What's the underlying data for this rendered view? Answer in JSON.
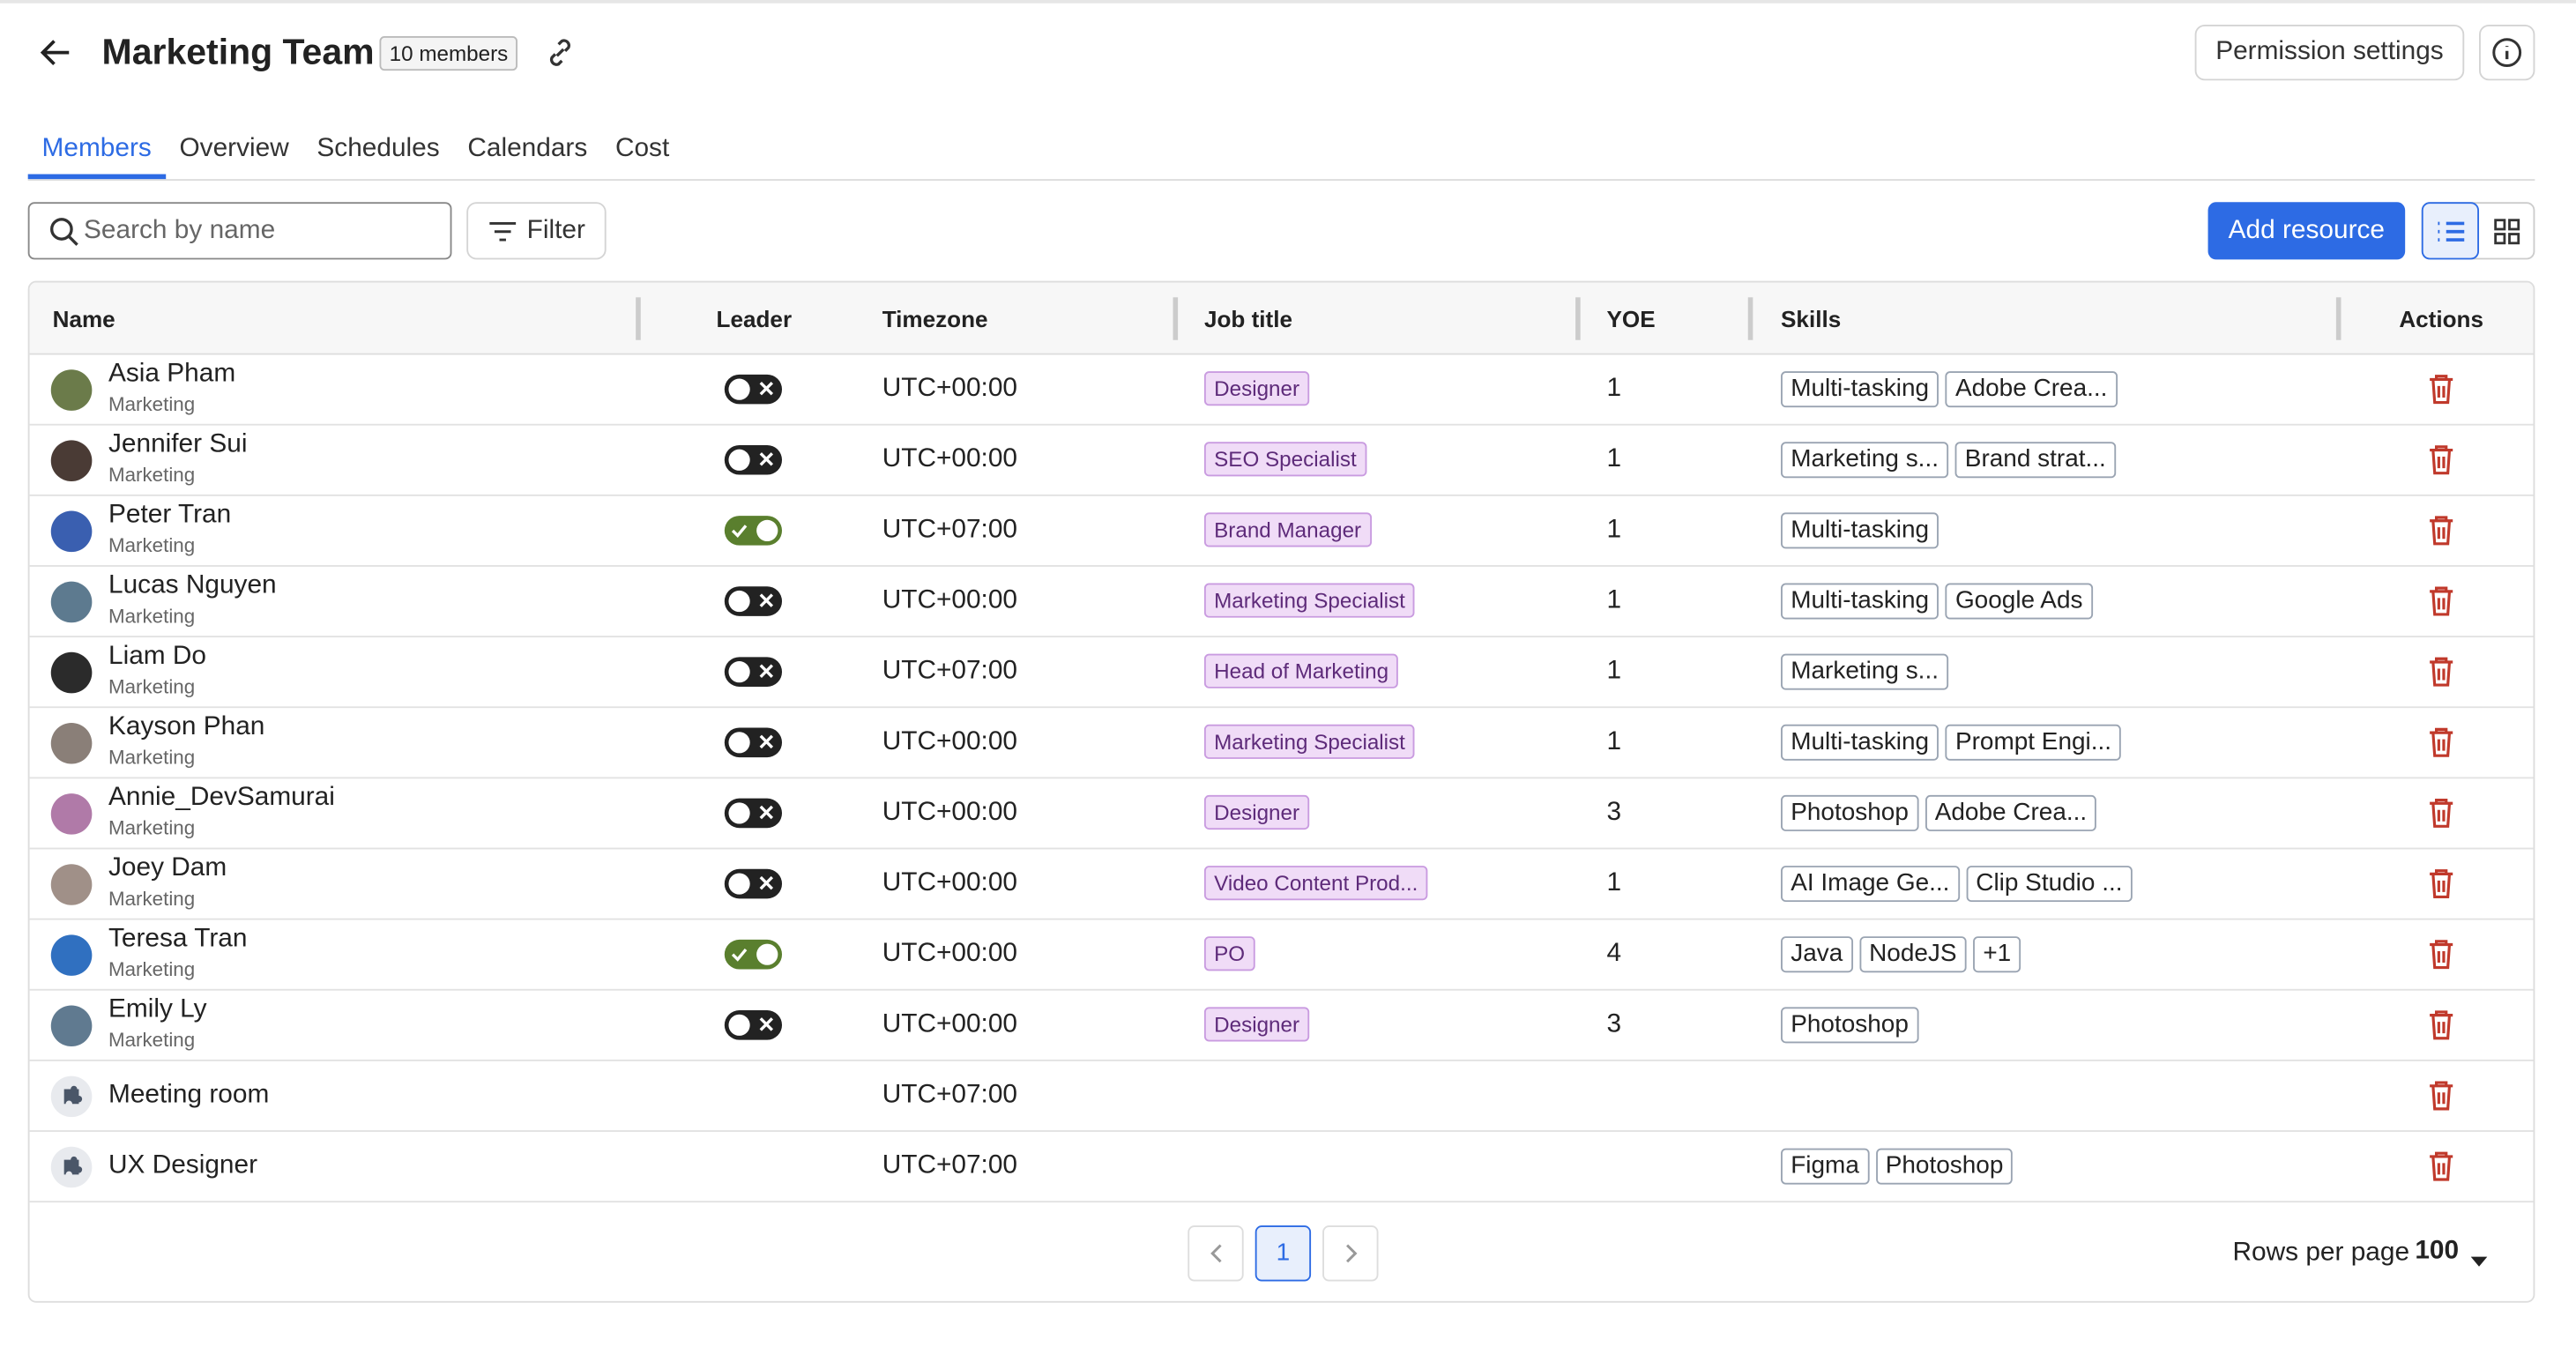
{
  "header": {
    "title": "Marketing Team",
    "members_badge": "10 members",
    "permission_button": "Permission settings"
  },
  "tabs": [
    "Members",
    "Overview",
    "Schedules",
    "Calendars",
    "Cost"
  ],
  "toolbar": {
    "search_placeholder": "Search by name",
    "filter": "Filter",
    "add_resource": "Add resource"
  },
  "table": {
    "columns": [
      "Name",
      "Leader",
      "Timezone",
      "Job title",
      "YOE",
      "Skills",
      "Actions"
    ],
    "rows": [
      {
        "name": "Asia Pham",
        "department": "Marketing",
        "leader": false,
        "timezone": "UTC+00:00",
        "job_title": "Designer",
        "yoe": 1,
        "skills": [
          "Multi-tasking",
          "Adobe Crea..."
        ]
      },
      {
        "name": "Jennifer Sui",
        "department": "Marketing",
        "leader": false,
        "timezone": "UTC+00:00",
        "job_title": "SEO Specialist",
        "yoe": 1,
        "skills": [
          "Marketing s...",
          "Brand strat..."
        ]
      },
      {
        "name": "Peter Tran",
        "department": "Marketing",
        "leader": true,
        "timezone": "UTC+07:00",
        "job_title": "Brand Manager",
        "yoe": 1,
        "skills": [
          "Multi-tasking"
        ]
      },
      {
        "name": "Lucas Nguyen",
        "department": "Marketing",
        "leader": false,
        "timezone": "UTC+00:00",
        "job_title": "Marketing Specialist",
        "yoe": 1,
        "skills": [
          "Multi-tasking",
          "Google Ads"
        ]
      },
      {
        "name": "Liam Do",
        "department": "Marketing",
        "leader": false,
        "timezone": "UTC+07:00",
        "job_title": "Head of Marketing",
        "yoe": 1,
        "skills": [
          "Marketing s..."
        ]
      },
      {
        "name": "Kayson Phan",
        "department": "Marketing",
        "leader": false,
        "timezone": "UTC+00:00",
        "job_title": "Marketing Specialist",
        "yoe": 1,
        "skills": [
          "Multi-tasking",
          "Prompt Engi..."
        ]
      },
      {
        "name": "Annie_DevSamurai",
        "department": "Marketing",
        "leader": false,
        "timezone": "UTC+00:00",
        "job_title": "Designer",
        "yoe": 3,
        "skills": [
          "Photoshop",
          "Adobe Crea..."
        ]
      },
      {
        "name": "Joey Dam",
        "department": "Marketing",
        "leader": false,
        "timezone": "UTC+00:00",
        "job_title": "Video Content Prod...",
        "yoe": 1,
        "skills": [
          "AI Image Ge...",
          "Clip Studio ..."
        ]
      },
      {
        "name": "Teresa Tran",
        "department": "Marketing",
        "leader": true,
        "timezone": "UTC+00:00",
        "job_title": "PO",
        "yoe": 4,
        "skills": [
          "Java",
          "NodeJS",
          "+1"
        ]
      },
      {
        "name": "Emily Ly",
        "department": "Marketing",
        "leader": false,
        "timezone": "UTC+00:00",
        "job_title": "Designer",
        "yoe": 3,
        "skills": [
          "Photoshop"
        ]
      },
      {
        "name": "Meeting room",
        "timezone": "UTC+07:00",
        "skills": []
      },
      {
        "name": "UX Designer",
        "timezone": "UTC+07:00",
        "skills": [
          "Figma",
          "Photoshop"
        ]
      }
    ]
  },
  "pagination": {
    "page": 1,
    "rows_per_page_label": "Rows per page",
    "rows_per_page": 100
  }
}
